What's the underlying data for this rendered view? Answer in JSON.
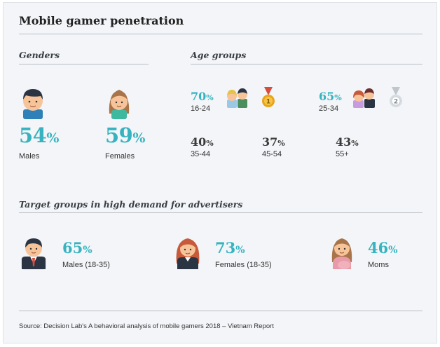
{
  "title": "Mobile gamer penetration",
  "sections": {
    "genders": "Genders",
    "age_groups": "Age groups",
    "target": "Target groups in high demand for advertisers"
  },
  "chart_data": [
    {
      "type": "table",
      "title": "Genders",
      "categories": [
        "Males",
        "Females"
      ],
      "values": [
        54,
        59
      ],
      "unit": "%"
    },
    {
      "type": "table",
      "title": "Age groups",
      "categories": [
        "16-24",
        "25-34",
        "35-44",
        "45-54",
        "55+"
      ],
      "values": [
        70,
        65,
        40,
        37,
        43
      ],
      "unit": "%",
      "ranks": {
        "16-24": 1,
        "25-34": 2
      }
    },
    {
      "type": "table",
      "title": "Target groups in high demand for advertisers",
      "categories": [
        "Males (18-35)",
        "Females (18-35)",
        "Moms"
      ],
      "values": [
        65,
        73,
        46
      ],
      "unit": "%"
    }
  ],
  "genders": [
    {
      "value": "54",
      "unit": "%",
      "label": "Males",
      "icon": "male-gamer-icon"
    },
    {
      "value": "59",
      "unit": "%",
      "label": "Females",
      "icon": "female-gamer-icon"
    }
  ],
  "ages": [
    {
      "value": "70",
      "unit": "%",
      "label": "16-24",
      "icon": "young-gamers-icon",
      "medal": "1"
    },
    {
      "value": "65",
      "unit": "%",
      "label": "25-34",
      "icon": "couple-gamers-icon",
      "medal": "2"
    },
    {
      "value": "40",
      "unit": "%",
      "label": "35-44"
    },
    {
      "value": "37",
      "unit": "%",
      "label": "45-54"
    },
    {
      "value": "43",
      "unit": "%",
      "label": "55+"
    }
  ],
  "targets": [
    {
      "value": "65",
      "unit": "%",
      "label": "Males (18-35)",
      "icon": "businessman-icon"
    },
    {
      "value": "73",
      "unit": "%",
      "label": "Females (18-35)",
      "icon": "woman-icon"
    },
    {
      "value": "46",
      "unit": "%",
      "label": "Moms",
      "icon": "pregnant-mom-icon"
    }
  ],
  "source": "Source: Decision Lab's A behavioral analysis of mobile gamers 2018 – Vietnam Report",
  "colors": {
    "accent": "#36b3bf",
    "dark_value": "#3b3b3b",
    "rule": "#b9c0c8",
    "background": "#f3f5f8"
  }
}
